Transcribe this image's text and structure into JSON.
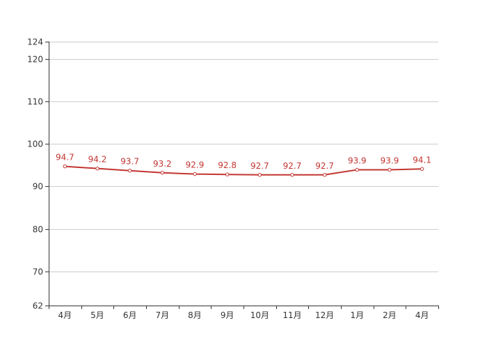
{
  "chart_data": {
    "type": "line",
    "title": "",
    "xlabel": "",
    "ylabel": "",
    "categories": [
      "4月",
      "5月",
      "6月",
      "7月",
      "8月",
      "9月",
      "10月",
      "11月",
      "12月",
      "1月",
      "2月",
      "4月"
    ],
    "series": [
      {
        "values": [
          94.7,
          94.2,
          93.7,
          93.2,
          92.9,
          92.8,
          92.7,
          92.7,
          92.7,
          93.9,
          93.9,
          94.1
        ],
        "color": "#c23531"
      }
    ],
    "ylim": [
      62,
      124
    ],
    "yticks": [
      62,
      70,
      80,
      90,
      100,
      110,
      120,
      124
    ],
    "grid": true,
    "data_labels": true,
    "legend": "none",
    "colors": {
      "line": "#c23531",
      "grid": "#cccccc",
      "axis": "#333333",
      "tick_text": "#333333"
    }
  }
}
